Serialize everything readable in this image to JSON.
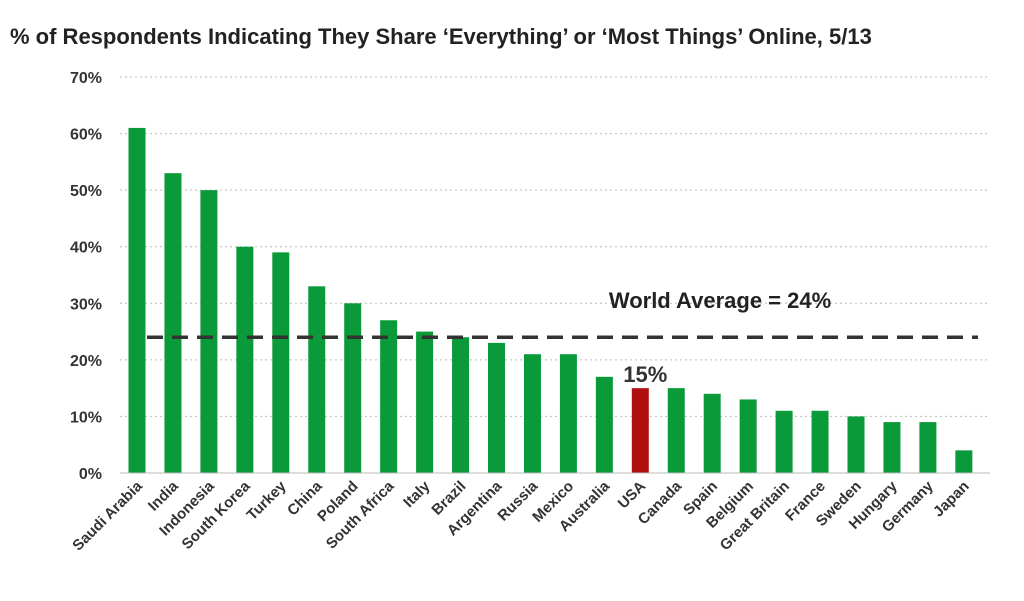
{
  "chart_data": {
    "type": "bar",
    "title": "% of Respondents Indicating They Share ‘Everything’ or ‘Most Things’ Online, 5/13",
    "xlabel": "",
    "ylabel": "",
    "ylim": [
      0,
      70
    ],
    "yticks": [
      "0%",
      "10%",
      "20%",
      "30%",
      "40%",
      "50%",
      "60%",
      "70%"
    ],
    "grid": true,
    "categories": [
      "Saudi Arabia",
      "India",
      "Indonesia",
      "South Korea",
      "Turkey",
      "China",
      "Poland",
      "South Africa",
      "Italy",
      "Brazil",
      "Argentina",
      "Russia",
      "Mexico",
      "Australia",
      "USA",
      "Canada",
      "Spain",
      "Belgium",
      "Great Britain",
      "France",
      "Sweden",
      "Hungary",
      "Germany",
      "Japan"
    ],
    "values": [
      61,
      53,
      50,
      40,
      39,
      33,
      30,
      27,
      25,
      24,
      23,
      21,
      21,
      17,
      15,
      15,
      14,
      13,
      11,
      11,
      10,
      9,
      9,
      4
    ],
    "highlight": {
      "category": "USA",
      "label": "15%",
      "color": "#b01010"
    },
    "bar_color": "#0a9a3a",
    "reference_line": {
      "value": 24,
      "label": "World Average = 24%",
      "color": "#333333",
      "style": "dashed"
    }
  }
}
